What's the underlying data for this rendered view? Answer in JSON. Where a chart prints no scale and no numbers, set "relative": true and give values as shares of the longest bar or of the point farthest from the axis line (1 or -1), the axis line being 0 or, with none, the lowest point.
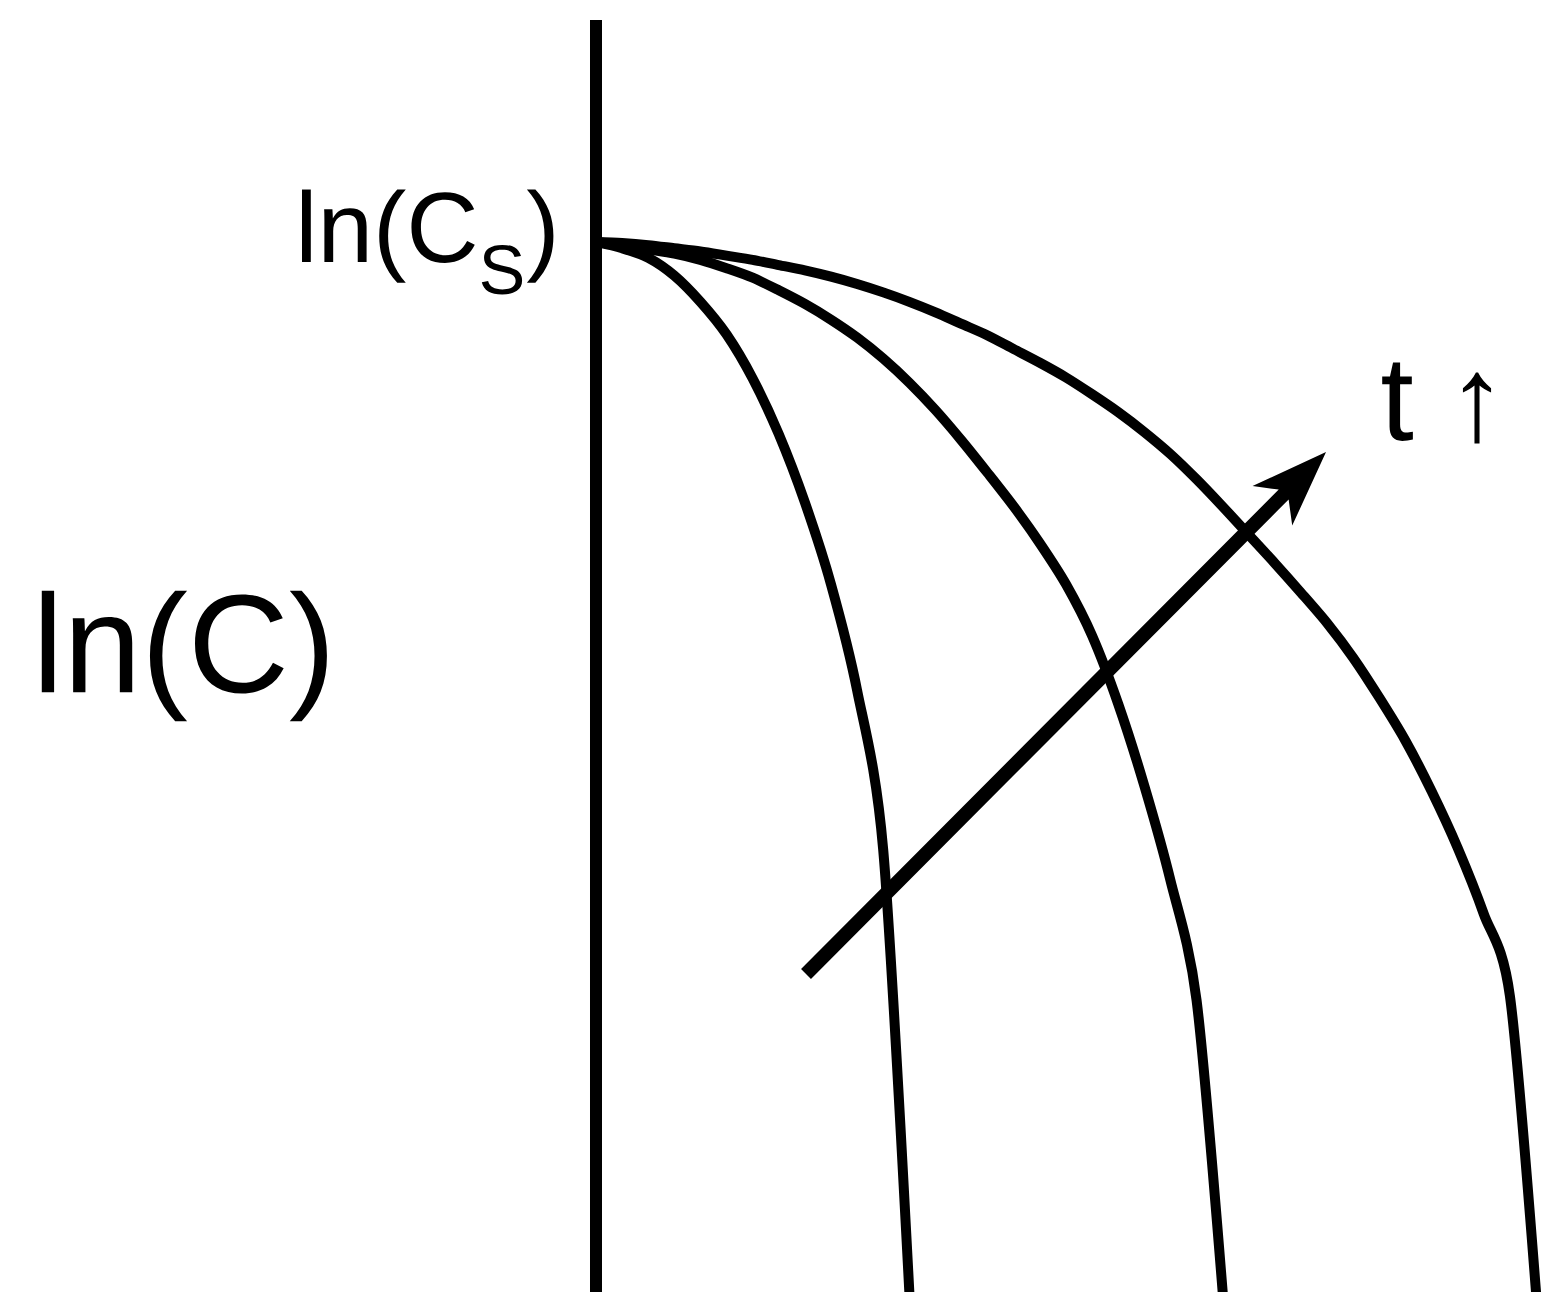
{
  "chart_data": {
    "type": "line",
    "ylabel": "ln(C)",
    "relative": true,
    "annotations": [
      "ln(C$_{S}$)",
      "t ↑"
    ],
    "categories": [
      null,
      null,
      null,
      null,
      null,
      null,
      null,
      null,
      null,
      null,
      null,
      null,
      null,
      null,
      null,
      null,
      null,
      null,
      null,
      null,
      null,
      null,
      null,
      null,
      null,
      null,
      null,
      null,
      null,
      null,
      null,
      null,
      null,
      null,
      null,
      null,
      null
    ],
    "series": [
      {
        "color": "#000000",
        "values": [
          1,
          0.994,
          0.985,
          0.968,
          0.943,
          0.912,
          0.87,
          0.817,
          0.752,
          0.674,
          0.573,
          0.421,
          0,
          null,
          null,
          null,
          null,
          null,
          null,
          null,
          null,
          null,
          null,
          null,
          null,
          null,
          null,
          null,
          null,
          null,
          null,
          null,
          null,
          null,
          null,
          null,
          null
        ]
      },
      {
        "color": "#000000",
        "values": [
          1,
          0.997,
          0.993,
          0.989,
          0.983,
          0.975,
          0.966,
          0.954,
          0.941,
          0.926,
          0.909,
          0.889,
          0.866,
          0.84,
          0.811,
          0.78,
          0.748,
          0.713,
          0.674,
          0.625,
          0.56,
          0.482,
          0.392,
          0.278,
          0,
          null,
          null,
          null,
          null,
          null,
          null,
          null,
          null,
          null,
          null,
          null,
          null
        ]
      },
      {
        "color": "#000000",
        "values": [
          1,
          0.999,
          0.997,
          0.994,
          0.991,
          0.987,
          0.983,
          0.978,
          0.973,
          0.967,
          0.96,
          0.952,
          0.943,
          0.933,
          0.922,
          0.911,
          0.898,
          0.885,
          0.871,
          0.855,
          0.838,
          0.819,
          0.798,
          0.774,
          0.748,
          0.721,
          0.694,
          0.666,
          0.637,
          0.604,
          0.566,
          0.525,
          0.477,
          0.423,
          0.36,
          0.282,
          0
        ]
      }
    ]
  }
}
